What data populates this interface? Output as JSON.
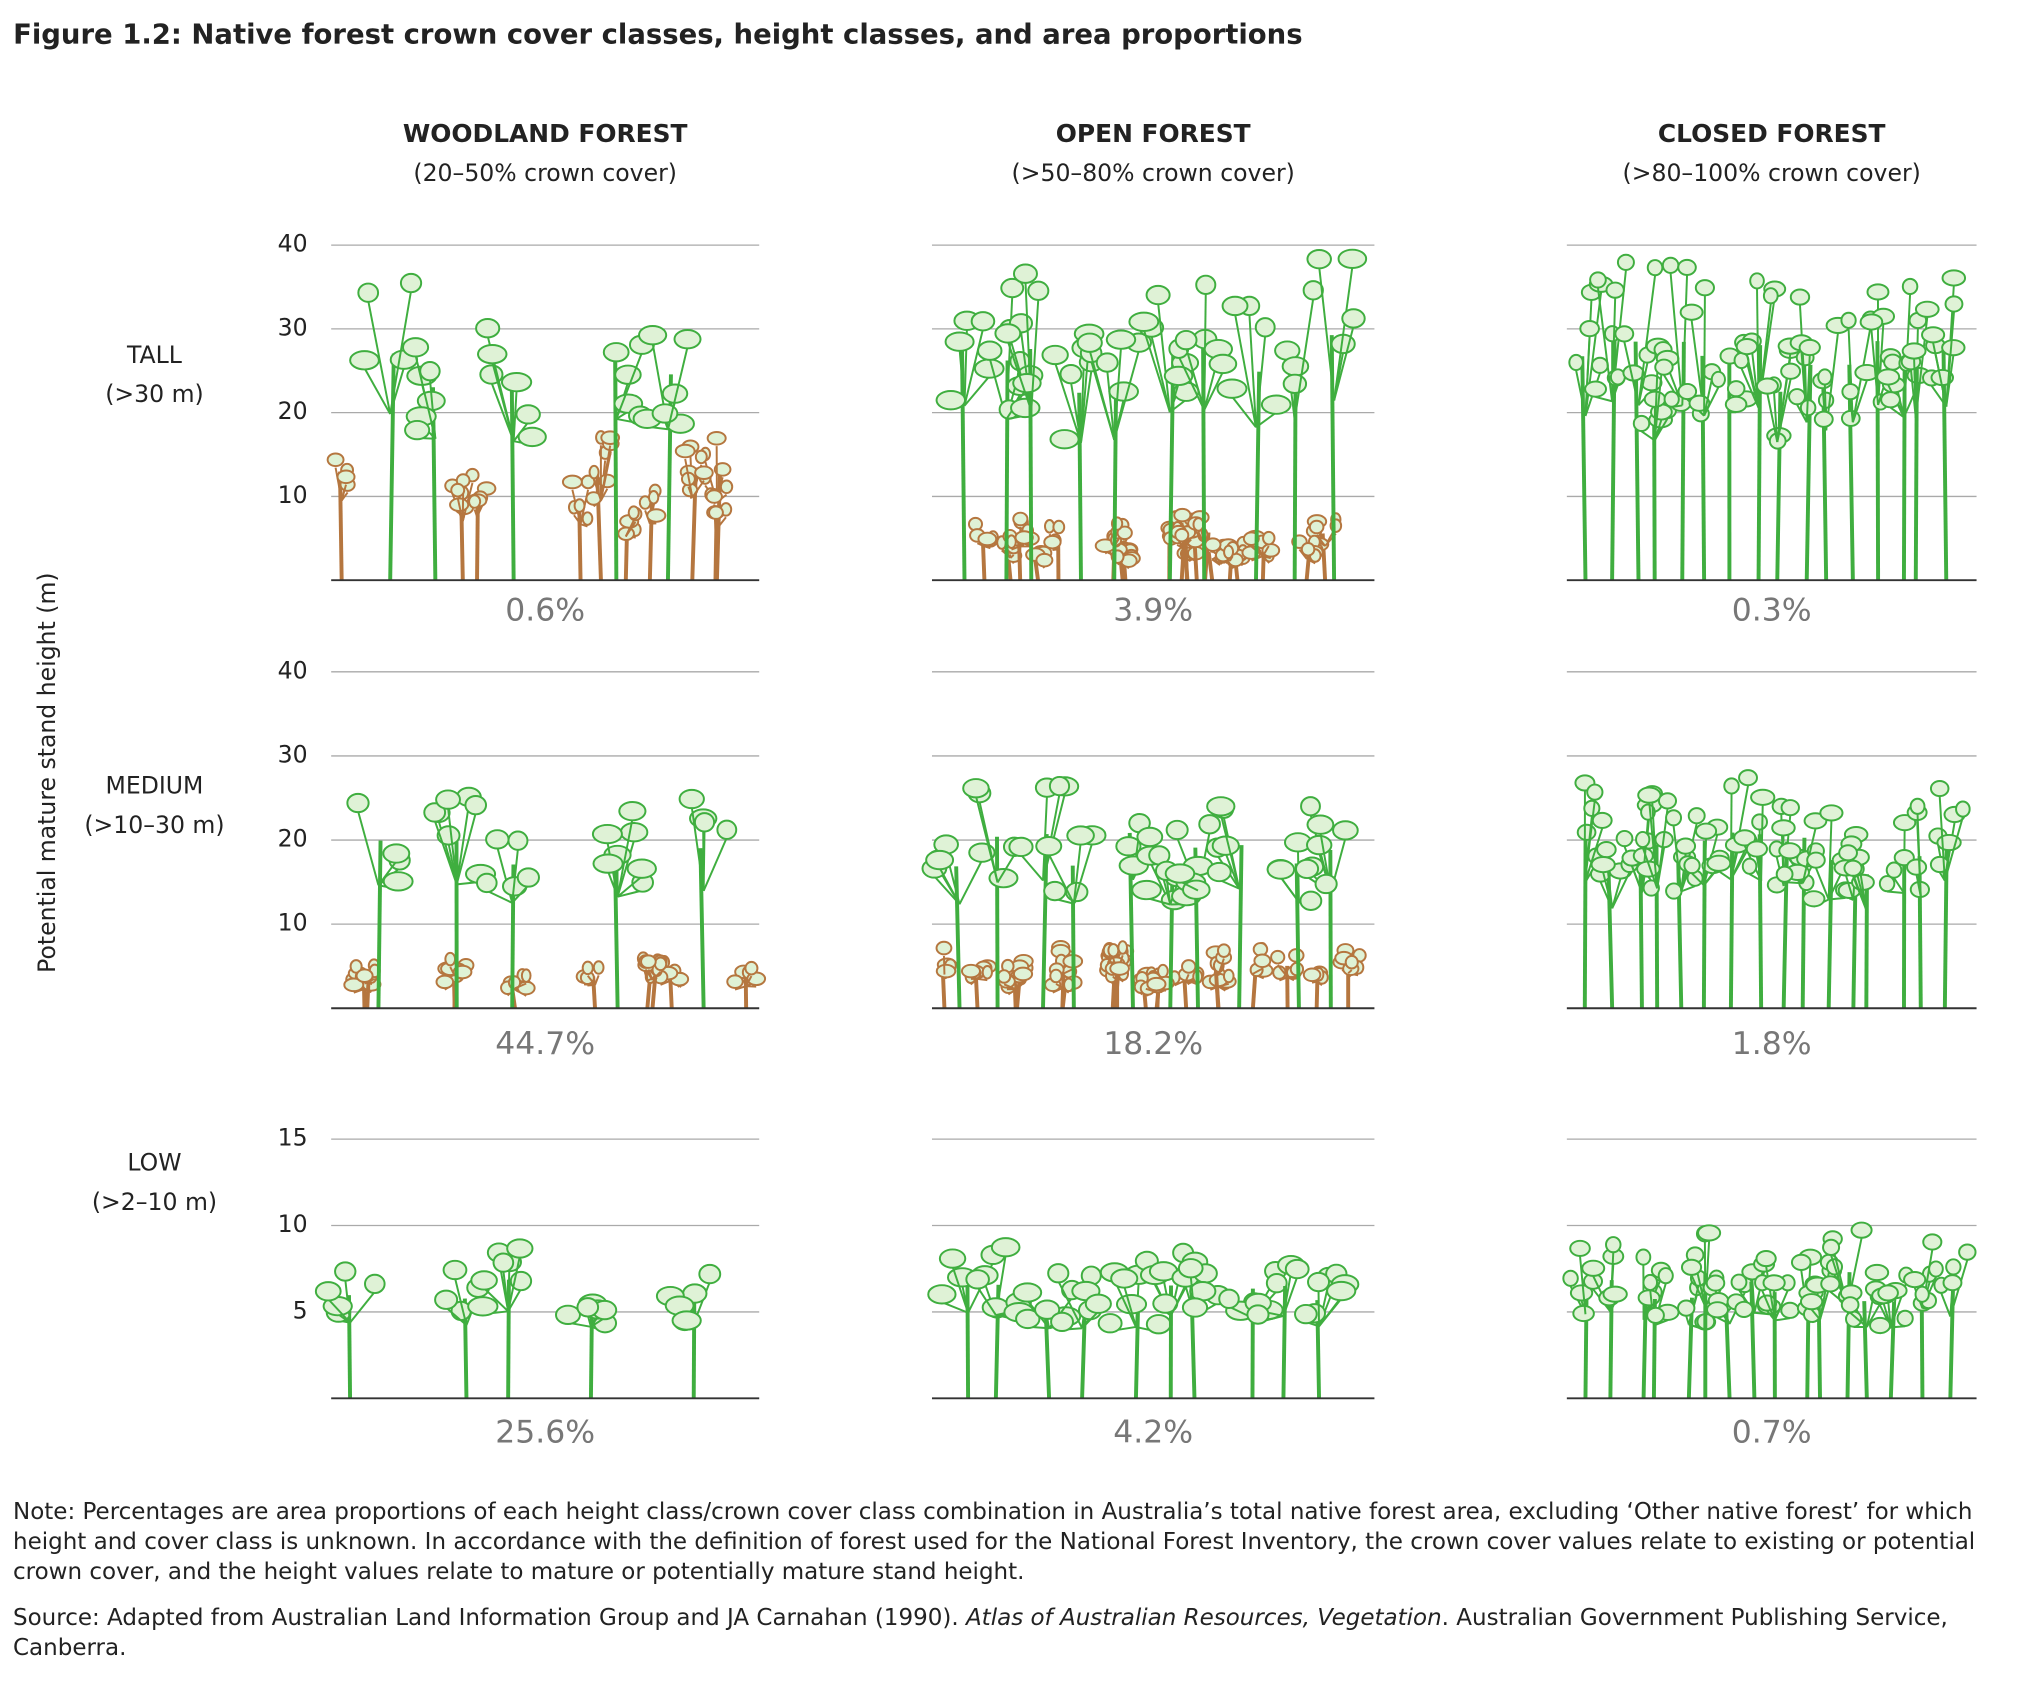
{
  "title": "Figure 1.2: Native forest crown cover classes, height classes, and area proportions",
  "y_axis_label": "Potential mature stand height (m)",
  "columns": [
    {
      "name": "WOODLAND FOREST",
      "subtitle": "(20–50% crown cover)"
    },
    {
      "name": "OPEN FOREST",
      "subtitle": "(>50–80% crown cover)"
    },
    {
      "name": "CLOSED FOREST",
      "subtitle": "(>80–100% crown cover)"
    }
  ],
  "rows": [
    {
      "name": "TALL",
      "range": "(>30 m)",
      "yticks": [
        40,
        30,
        20,
        10
      ],
      "cells": [
        "0.6%",
        "3.9%",
        "0.3%"
      ]
    },
    {
      "name": "MEDIUM",
      "range": "(>10–30 m)",
      "yticks": [
        40,
        30,
        20,
        10
      ],
      "cells": [
        "44.7%",
        "18.2%",
        "1.8%"
      ]
    },
    {
      "name": "LOW",
      "range": "(>2–10 m)",
      "yticks": [
        15,
        10,
        5
      ],
      "cells": [
        "25.6%",
        "4.2%",
        "0.7%"
      ]
    }
  ],
  "note": "Note: Percentages are area proportions of each height class/crown cover class combination in Australia’s total native forest area, excluding ‘Other native forest’ for which height and cover class is unknown. In accordance with the definition of forest used for the National Forest Inventory, the crown cover values relate to existing or potential crown cover, and the height values relate to mature or potentially mature stand height.",
  "source": {
    "before": "Source: Adapted from Australian Land Information Group and JA Carnahan (1990). ",
    "italic": "Atlas of Australian Resources, Vegetation",
    "after": ". Australian Government Publishing Service, Canberra."
  }
}
